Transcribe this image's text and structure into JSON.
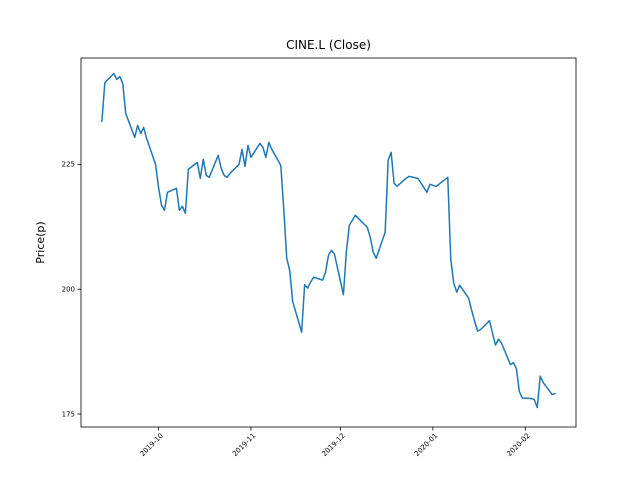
{
  "figure": {
    "background": "#ffffff"
  },
  "chart_data": {
    "type": "line",
    "title": "CINE.L (Close)",
    "xlabel": "",
    "ylabel": "Price(p)",
    "grid": false,
    "legend_position": "none",
    "line_color": "#1f77b4",
    "axis_color": "#000000",
    "y_ticks": [
      175,
      200,
      225
    ],
    "x_tick_labels": [
      "2019-10",
      "2019-11",
      "2019-12",
      "2020-01",
      "2020-02"
    ],
    "x_tick_dates": [
      "2019-10-01",
      "2019-11-01",
      "2019-12-01",
      "2020-01-01",
      "2020-02-01"
    ],
    "ylim": [
      172.4,
      246.3
    ],
    "xlim": [
      "2019-09-05",
      "2020-02-18"
    ],
    "series": [
      {
        "name": "Close",
        "dates": [
          "2019-09-12",
          "2019-09-13",
          "2019-09-16",
          "2019-09-17",
          "2019-09-18",
          "2019-09-19",
          "2019-09-20",
          "2019-09-23",
          "2019-09-24",
          "2019-09-25",
          "2019-09-26",
          "2019-09-27",
          "2019-09-30",
          "2019-10-01",
          "2019-10-02",
          "2019-10-03",
          "2019-10-04",
          "2019-10-07",
          "2019-10-08",
          "2019-10-09",
          "2019-10-10",
          "2019-10-11",
          "2019-10-14",
          "2019-10-15",
          "2019-10-16",
          "2019-10-17",
          "2019-10-18",
          "2019-10-21",
          "2019-10-22",
          "2019-10-23",
          "2019-10-24",
          "2019-10-25",
          "2019-10-28",
          "2019-10-29",
          "2019-10-30",
          "2019-10-31",
          "2019-11-01",
          "2019-11-04",
          "2019-11-05",
          "2019-11-06",
          "2019-11-07",
          "2019-11-08",
          "2019-11-11",
          "2019-11-12",
          "2019-11-13",
          "2019-11-14",
          "2019-11-15",
          "2019-11-18",
          "2019-11-19",
          "2019-11-20",
          "2019-11-21",
          "2019-11-22",
          "2019-11-25",
          "2019-11-26",
          "2019-11-27",
          "2019-11-28",
          "2019-11-29",
          "2019-12-02",
          "2019-12-03",
          "2019-12-04",
          "2019-12-05",
          "2019-12-06",
          "2019-12-09",
          "2019-12-10",
          "2019-12-11",
          "2019-12-12",
          "2019-12-13",
          "2019-12-16",
          "2019-12-17",
          "2019-12-18",
          "2019-12-19",
          "2019-12-20",
          "2019-12-23",
          "2019-12-24",
          "2019-12-27",
          "2019-12-30",
          "2019-12-31",
          "2020-01-02",
          "2020-01-03",
          "2020-01-06",
          "2020-01-07",
          "2020-01-08",
          "2020-01-09",
          "2020-01-10",
          "2020-01-13",
          "2020-01-14",
          "2020-01-15",
          "2020-01-16",
          "2020-01-17",
          "2020-01-20",
          "2020-01-21",
          "2020-01-22",
          "2020-01-23",
          "2020-01-24",
          "2020-01-27",
          "2020-01-28",
          "2020-01-29",
          "2020-01-30",
          "2020-01-31",
          "2020-02-03",
          "2020-02-04",
          "2020-02-05",
          "2020-02-06",
          "2020-02-07",
          "2020-02-10",
          "2020-02-11"
        ],
        "values": [
          233.6,
          241.4,
          243.2,
          242.0,
          242.6,
          241.2,
          235.2,
          230.4,
          232.8,
          231.2,
          232.4,
          230.2,
          225.0,
          220.4,
          216.8,
          215.8,
          219.4,
          220.2,
          215.8,
          216.6,
          215.2,
          224.0,
          225.4,
          222.2,
          226.0,
          222.8,
          222.4,
          226.8,
          224.2,
          222.8,
          222.4,
          223.2,
          225.0,
          228.0,
          224.6,
          228.8,
          226.4,
          229.2,
          228.4,
          226.4,
          229.4,
          228.0,
          224.8,
          216.0,
          206.2,
          203.7,
          197.5,
          191.4,
          200.9,
          200.2,
          201.4,
          202.4,
          201.8,
          203.4,
          206.8,
          207.8,
          207.0,
          198.9,
          207.6,
          212.8,
          213.8,
          214.8,
          213.0,
          212.4,
          210.4,
          207.4,
          206.2,
          211.4,
          225.8,
          227.4,
          221.2,
          220.6,
          222.2,
          222.6,
          222.2,
          219.4,
          221.0,
          220.6,
          221.0,
          222.4,
          206.0,
          201.2,
          199.4,
          200.8,
          198.2,
          195.8,
          193.6,
          191.6,
          191.9,
          193.7,
          191.2,
          188.8,
          190.0,
          189.2,
          184.9,
          185.3,
          184.1,
          179.5,
          178.2,
          178.1,
          177.9,
          176.3,
          182.6,
          181.3,
          178.9,
          179.1
        ]
      }
    ]
  }
}
